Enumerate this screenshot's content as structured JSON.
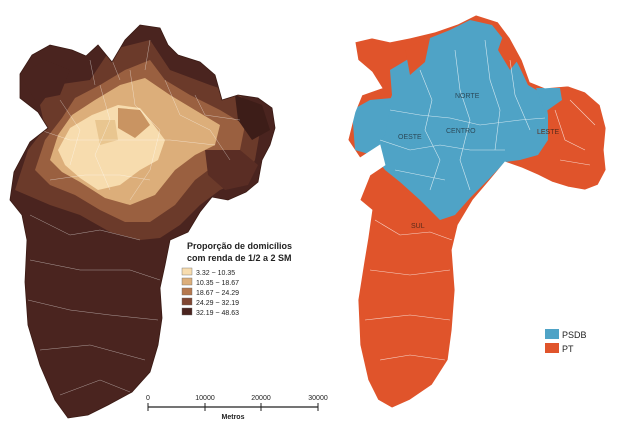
{
  "left_map": {
    "legend": {
      "title_line1": "Proporção de domicílios",
      "title_line2": "com renda de 1/2 a 2 SM",
      "items": [
        {
          "label": "3.32 ~ 10.35",
          "color": "#f7dcae"
        },
        {
          "label": "10.35 ~ 18.67",
          "color": "#dcae7a"
        },
        {
          "label": "18.67 ~ 24.29",
          "color": "#b5784e"
        },
        {
          "label": "24.29 ~ 32.19",
          "color": "#7f4632"
        },
        {
          "label": "32.19 ~ 48.63",
          "color": "#4a241f"
        }
      ]
    },
    "scalebar": {
      "ticks": [
        "0",
        "10000",
        "20000",
        "30000"
      ],
      "unit": "Metros"
    }
  },
  "right_map": {
    "region_labels": [
      "NORTE",
      "OESTE",
      "CENTRO",
      "LESTE",
      "SUL"
    ],
    "legend": {
      "items": [
        {
          "label": "PSDB",
          "color": "#4fa3c6"
        },
        {
          "label": "PT",
          "color": "#e0542b"
        }
      ]
    }
  }
}
